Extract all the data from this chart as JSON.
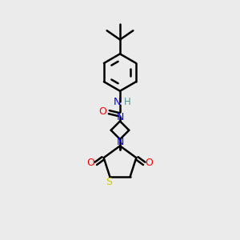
{
  "bg_color": "#ebebeb",
  "line_color": "#000000",
  "bond_width": 1.8,
  "fig_size": [
    3.0,
    3.0
  ],
  "dpi": 100,
  "colors": {
    "N": "#0000ff",
    "O": "#ff0000",
    "S": "#cccc00",
    "H": "#4e9090",
    "C": "#000000"
  }
}
